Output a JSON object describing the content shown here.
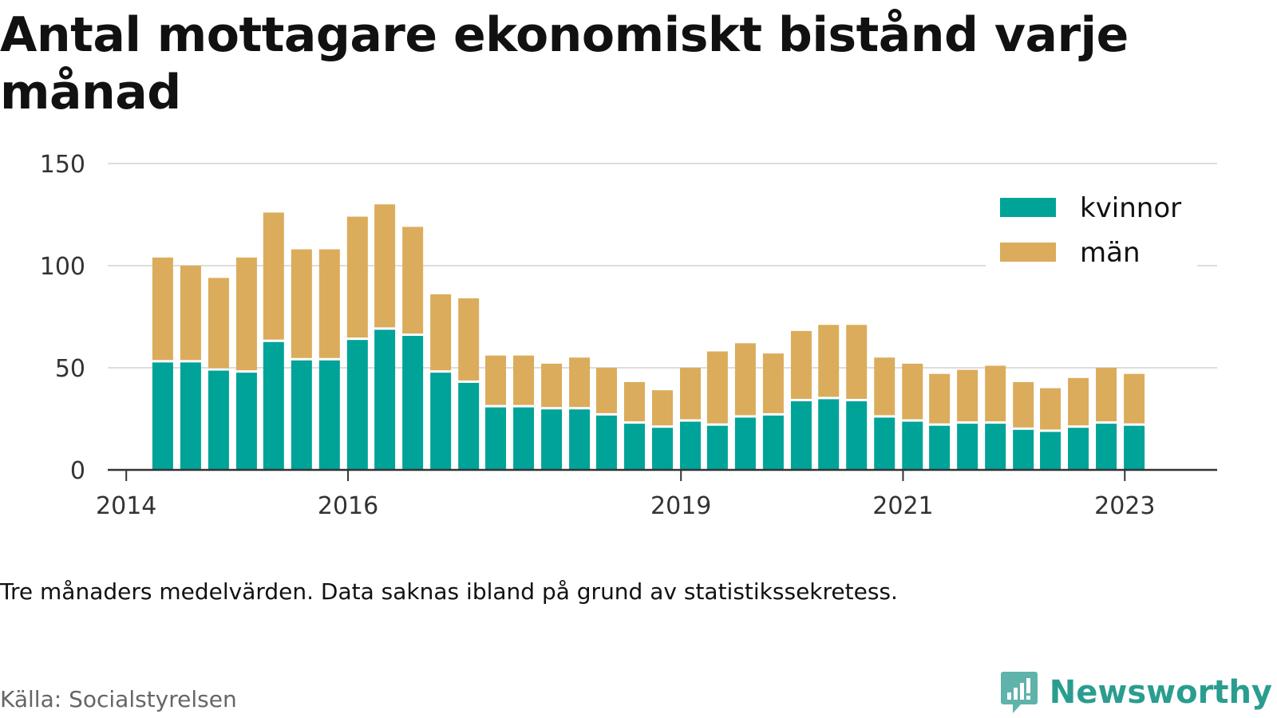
{
  "title": "Antal mottagare ekonomiskt bistånd varje månad",
  "caption": "Tre månaders medelvärden. Data saknas ibland på grund av statistikssekretess.",
  "source": "Källa: Socialstyrelsen",
  "brand": {
    "name": "Newsworthy",
    "icon": "newsworthy-logo-icon",
    "color": "#2a9d8f"
  },
  "colors": {
    "kvinnor": "#00a398",
    "man": "#dbac5b",
    "grid": "#dddddd",
    "axis": "#333333"
  },
  "chart_data": {
    "type": "bar",
    "stacked": true,
    "title": "Antal mottagare ekonomiskt bistånd varje månad",
    "xlabel": "",
    "ylabel": "",
    "ylim": [
      0,
      150
    ],
    "yticks": [
      0,
      50,
      100,
      150
    ],
    "xlim": [
      "2013-11-01",
      "2023-11-01"
    ],
    "xticks": [
      {
        "label": "2014",
        "date": "2014-01-01"
      },
      {
        "label": "2016",
        "date": "2016-01-01"
      },
      {
        "label": "2019",
        "date": "2019-01-01"
      },
      {
        "label": "2021",
        "date": "2021-01-01"
      },
      {
        "label": "2023",
        "date": "2023-01-01"
      }
    ],
    "grid": true,
    "legend_position": "top-right",
    "x": [
      "2014-05-01",
      "2014-08-01",
      "2014-11-01",
      "2015-02-01",
      "2015-05-01",
      "2015-08-01",
      "2015-11-01",
      "2016-02-01",
      "2016-05-01",
      "2016-08-01",
      "2016-11-01",
      "2017-02-01",
      "2017-05-01",
      "2017-08-01",
      "2017-11-01",
      "2018-02-01",
      "2018-05-01",
      "2018-08-01",
      "2018-11-01",
      "2019-02-01",
      "2019-05-01",
      "2019-08-01",
      "2019-11-01",
      "2020-02-01",
      "2020-05-01",
      "2020-08-01",
      "2020-11-01",
      "2021-02-01",
      "2021-05-01",
      "2021-08-01",
      "2021-11-01",
      "2022-02-01",
      "2022-05-01",
      "2022-08-01",
      "2022-11-01",
      "2023-02-01",
      "2023-05-01"
    ],
    "series": [
      {
        "name": "kvinnor",
        "color": "#00a398",
        "values": [
          53,
          53,
          49,
          48,
          63,
          54,
          54,
          64,
          69,
          66,
          48,
          43,
          31,
          31,
          30,
          30,
          27,
          23,
          21,
          24,
          22,
          26,
          27,
          34,
          35,
          34,
          26,
          24,
          22,
          23,
          23,
          20,
          19,
          21,
          23,
          22,
          0
        ]
      },
      {
        "name": "män",
        "color": "#dbac5b",
        "values": [
          51,
          47,
          45,
          56,
          63,
          54,
          54,
          60,
          61,
          53,
          38,
          41,
          25,
          25,
          22,
          25,
          23,
          20,
          18,
          26,
          36,
          36,
          30,
          34,
          36,
          37,
          29,
          28,
          25,
          26,
          28,
          23,
          21,
          24,
          27,
          25,
          0
        ]
      }
    ]
  }
}
